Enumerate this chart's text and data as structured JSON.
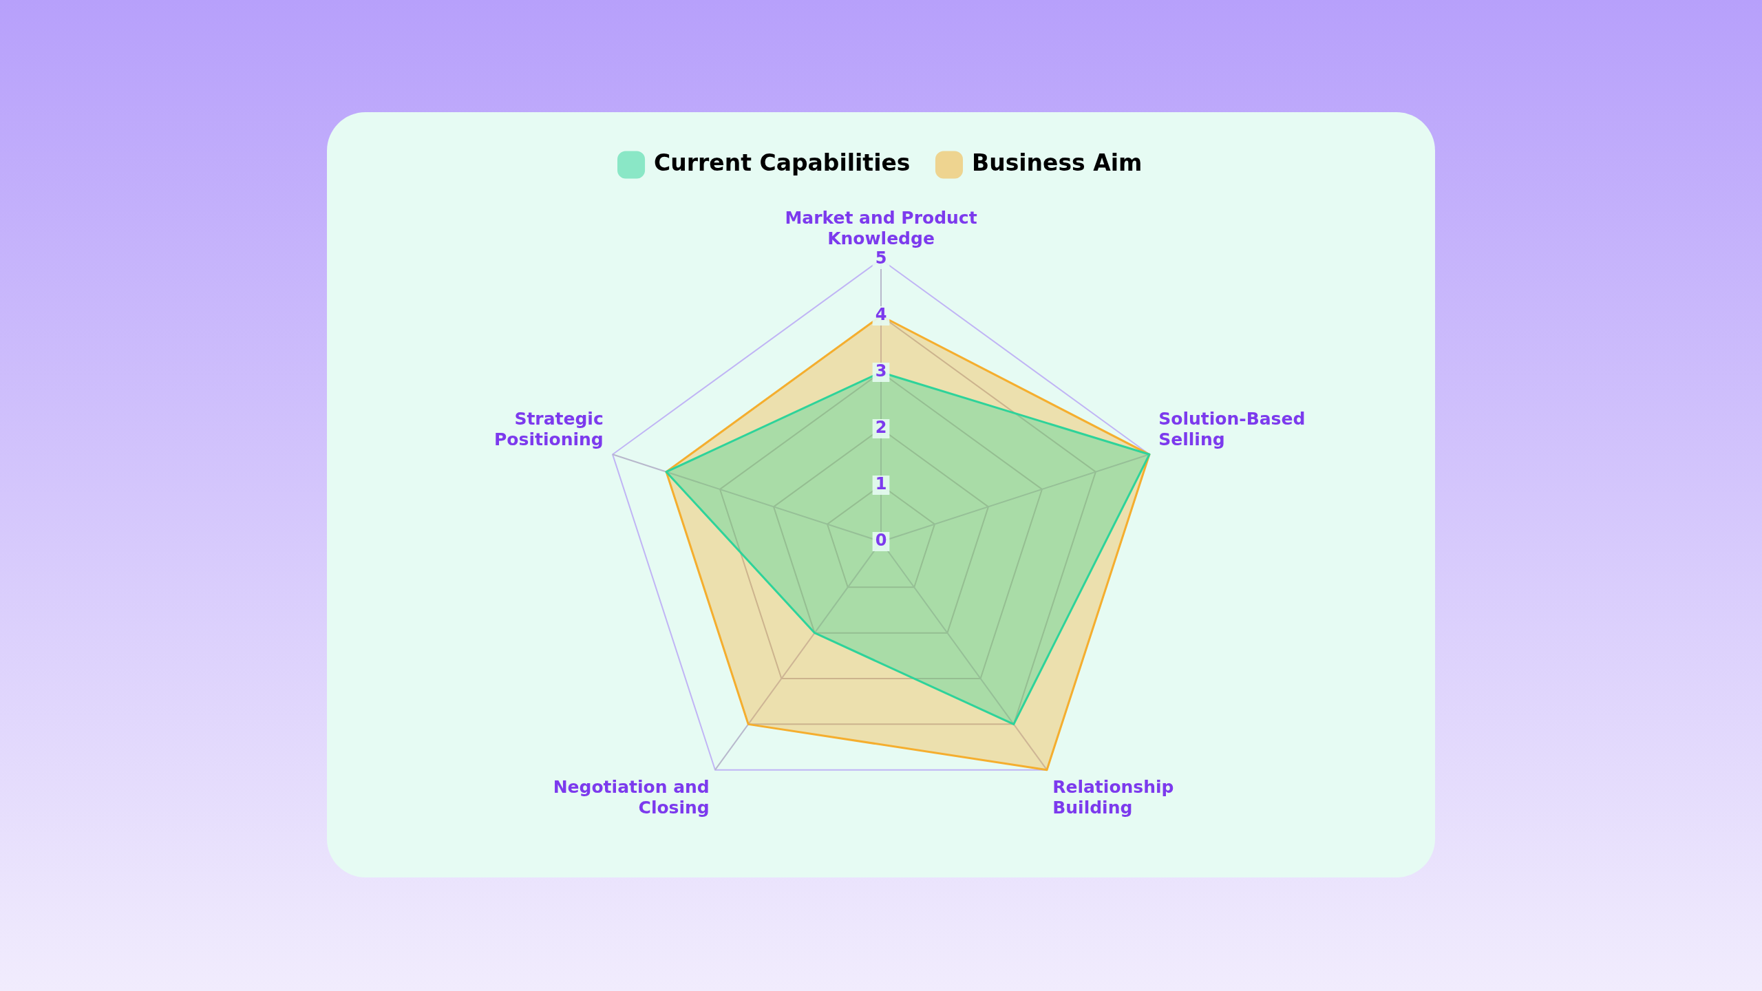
{
  "chart_data": {
    "type": "radar",
    "categories": [
      "Market and Product Knowledge",
      "Solution-Based Selling",
      "Relationship Building",
      "Negotiation and Closing",
      "Strategic Positioning"
    ],
    "series": [
      {
        "name": "Current Capabilities",
        "color": "#2ed39a",
        "values": [
          3,
          5,
          4,
          2,
          4
        ]
      },
      {
        "name": "Business Aim",
        "color": "#f5ae2e",
        "values": [
          4,
          5,
          5,
          4,
          4
        ]
      }
    ],
    "ylim": [
      0,
      5
    ],
    "yticks": [
      0,
      1,
      2,
      3,
      4,
      5
    ],
    "grid": true,
    "legend": "top"
  }
}
